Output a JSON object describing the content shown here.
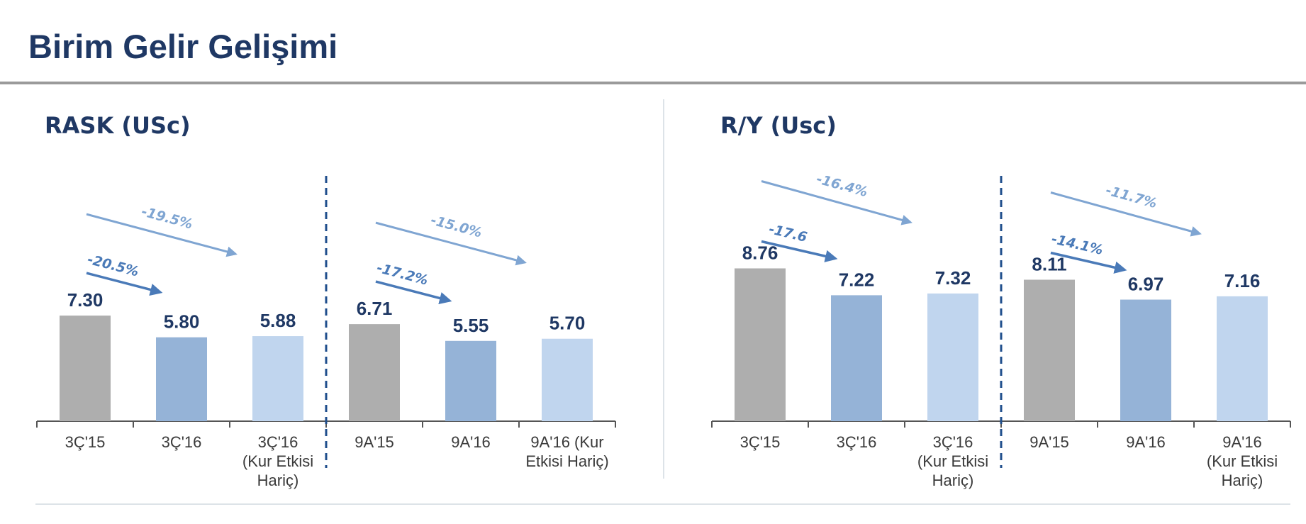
{
  "page": {
    "title": "Birim Gelir Gelişimi"
  },
  "colors": {
    "title": "#1f3864",
    "bar_prev": "#aeaeae",
    "bar_curr": "#95b3d7",
    "bar_excl": "#c0d5ee",
    "arrow_dark": "#4a7ab8",
    "arrow_light": "#7fa5d2",
    "divider": "#1f4e8c"
  },
  "chart_data": [
    {
      "type": "bar",
      "title": "RASK (USc)",
      "categories": [
        [
          "3Ç'15"
        ],
        [
          "3Ç'16"
        ],
        [
          "3Ç'16",
          "(Kur Etkisi",
          "Hariç)"
        ],
        [
          "9A'15"
        ],
        [
          "9A'16"
        ],
        [
          "9A'16 (Kur",
          "Etkisi Hariç)"
        ]
      ],
      "values": [
        7.3,
        5.8,
        5.88,
        6.71,
        5.55,
        5.7
      ],
      "value_labels": [
        "7.30",
        "5.80",
        "5.88",
        "6.71",
        "5.55",
        "5.70"
      ],
      "annotations": [
        {
          "text": "-20.5%",
          "from": 0,
          "to": 1,
          "style": "dark"
        },
        {
          "text": "-19.5%",
          "from": 0,
          "to": 2,
          "style": "light"
        },
        {
          "text": "-17.2%",
          "from": 3,
          "to": 4,
          "style": "dark"
        },
        {
          "text": "-15.0%",
          "from": 3,
          "to": 5,
          "style": "light"
        }
      ],
      "ylim": [
        0,
        10
      ]
    },
    {
      "type": "bar",
      "title": "R/Y (Usc)",
      "categories": [
        [
          "3Ç'15"
        ],
        [
          "3Ç'16"
        ],
        [
          "3Ç'16",
          "(Kur Etkisi",
          "Hariç)"
        ],
        [
          "9A'15"
        ],
        [
          "9A'16"
        ],
        [
          "9A'16",
          "(Kur Etkisi",
          "Hariç)"
        ]
      ],
      "values": [
        8.76,
        7.22,
        7.32,
        8.11,
        6.97,
        7.16
      ],
      "value_labels": [
        "8.76",
        "7.22",
        "7.32",
        "8.11",
        "6.97",
        "7.16"
      ],
      "annotations": [
        {
          "text": "-17.6",
          "from": 0,
          "to": 1,
          "style": "dark"
        },
        {
          "text": "-16.4%",
          "from": 0,
          "to": 2,
          "style": "light"
        },
        {
          "text": "-14.1%",
          "from": 3,
          "to": 4,
          "style": "dark"
        },
        {
          "text": "-11.7%",
          "from": 3,
          "to": 5,
          "style": "light"
        }
      ],
      "ylim": [
        0,
        10
      ]
    }
  ]
}
